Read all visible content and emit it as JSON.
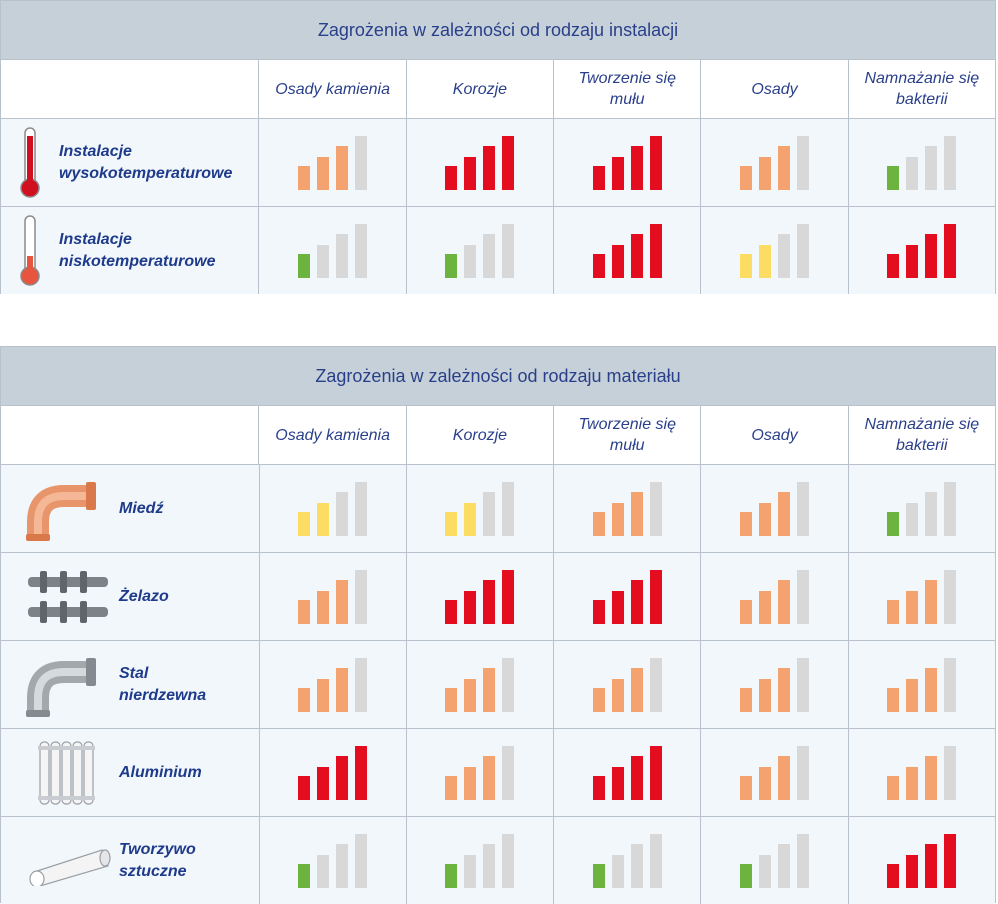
{
  "colors": {
    "red": "#e30d1f",
    "orange": "#f4a26f",
    "yellow": "#fcdc62",
    "green": "#6db33f",
    "gray": "#d8d8d8"
  },
  "table1": {
    "title": "Zagrożenia w zależności od rodzaju instalacji",
    "headers": [
      "Osady kamienia",
      "Korozje",
      "Tworzenie się\nmułu",
      "Osady",
      "Namnażanie się\nbakterii"
    ],
    "rows": [
      {
        "icon": "thermometer-high-icon",
        "label": "Instalacje\nwysokotemperaturowe",
        "levels": [
          {
            "level": 3,
            "color": "orange"
          },
          {
            "level": 4,
            "color": "red"
          },
          {
            "level": 4,
            "color": "red"
          },
          {
            "level": 3,
            "color": "orange"
          },
          {
            "level": 1,
            "color": "green"
          }
        ]
      },
      {
        "icon": "thermometer-low-icon",
        "label": "Instalacje\nniskotemperaturowe",
        "levels": [
          {
            "level": 1,
            "color": "green"
          },
          {
            "level": 1,
            "color": "green"
          },
          {
            "level": 4,
            "color": "red"
          },
          {
            "level": 2,
            "color": "yellow"
          },
          {
            "level": 4,
            "color": "red"
          }
        ]
      }
    ]
  },
  "table2": {
    "title": "Zagrożenia w zależności od rodzaju materiału",
    "headers": [
      "Osady kamienia",
      "Korozje",
      "Tworzenie się\nmułu",
      "Osady",
      "Namnażanie się\nbakterii"
    ],
    "rows": [
      {
        "icon": "copper-elbow-icon",
        "label": "Miedź",
        "levels": [
          {
            "level": 2,
            "color": "yellow"
          },
          {
            "level": 2,
            "color": "yellow"
          },
          {
            "level": 3,
            "color": "orange"
          },
          {
            "level": 3,
            "color": "orange"
          },
          {
            "level": 1,
            "color": "green"
          }
        ]
      },
      {
        "icon": "iron-manifold-icon",
        "label": "Żelazo",
        "levels": [
          {
            "level": 3,
            "color": "orange"
          },
          {
            "level": 4,
            "color": "red"
          },
          {
            "level": 4,
            "color": "red"
          },
          {
            "level": 3,
            "color": "orange"
          },
          {
            "level": 3,
            "color": "orange"
          }
        ]
      },
      {
        "icon": "steel-elbow-icon",
        "label": "Stal\nnierdzewna",
        "levels": [
          {
            "level": 3,
            "color": "orange"
          },
          {
            "level": 3,
            "color": "orange"
          },
          {
            "level": 3,
            "color": "orange"
          },
          {
            "level": 3,
            "color": "orange"
          },
          {
            "level": 3,
            "color": "orange"
          }
        ]
      },
      {
        "icon": "aluminium-radiator-icon",
        "label": "Aluminium",
        "levels": [
          {
            "level": 4,
            "color": "red"
          },
          {
            "level": 3,
            "color": "orange"
          },
          {
            "level": 4,
            "color": "red"
          },
          {
            "level": 3,
            "color": "orange"
          },
          {
            "level": 3,
            "color": "orange"
          }
        ]
      },
      {
        "icon": "plastic-pipe-icon",
        "label": "Tworzywo\nsztuczne",
        "levels": [
          {
            "level": 1,
            "color": "green"
          },
          {
            "level": 1,
            "color": "green"
          },
          {
            "level": 1,
            "color": "green"
          },
          {
            "level": 1,
            "color": "green"
          },
          {
            "level": 4,
            "color": "red"
          }
        ]
      }
    ]
  }
}
